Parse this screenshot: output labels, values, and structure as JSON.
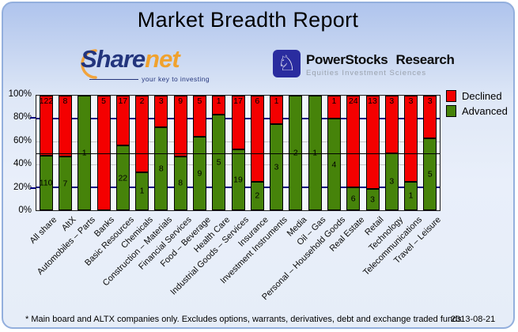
{
  "header": {
    "title": "Market Breadth Report"
  },
  "logos": {
    "sharenet": {
      "name_part1": "Share",
      "name_part2": "net",
      "tagline": "your key to investing",
      "navy": "#23357d",
      "orange": "#f0a22e"
    },
    "powerstocks": {
      "word1": "PowerStocks",
      "word2": "Research",
      "subtitle": "Equities Investment Sciences",
      "knight_icon": "chess-knight",
      "badge_color": "#2a2c9f"
    }
  },
  "chart_data": {
    "type": "bar",
    "stacked": true,
    "stacking": "percent",
    "title": "Market Breadth Report",
    "categories": [
      "All share",
      "AltX",
      "Automobiles – Parts",
      "Banks",
      "Basic Resources",
      "Chemicals",
      "Construction – Materials",
      "Financial Services",
      "Food – Beverage",
      "Health Care",
      "Industrial Goods – Services",
      "Insurance",
      "Investment Instruments",
      "Media",
      "Oil – Gas",
      "Personal – Household Goods",
      "Real Estate",
      "Retail",
      "Technology",
      "Telecommunications",
      "Travel – Leisure"
    ],
    "series": [
      {
        "name": "Declined",
        "color": "#f40000",
        "values": [
          122,
          8,
          0,
          5,
          17,
          2,
          3,
          9,
          5,
          1,
          17,
          6,
          1,
          0,
          0,
          1,
          24,
          13,
          3,
          3,
          3
        ]
      },
      {
        "name": "Advanced",
        "color": "#46830a",
        "values": [
          110,
          7,
          1,
          0,
          22,
          1,
          8,
          8,
          9,
          5,
          19,
          2,
          3,
          2,
          1,
          4,
          6,
          3,
          3,
          1,
          5
        ]
      }
    ],
    "xlabel": "",
    "ylabel": "",
    "ylim": [
      0,
      100
    ],
    "y_ticks": [
      "0%",
      "20%",
      "40%",
      "60%",
      "80%",
      "100%"
    ],
    "grid": "on",
    "reference_line_pct": 50,
    "legend_position": "top-right"
  },
  "footer": {
    "note": "* Main board and ALTX companies only. Excludes options, warrants, derivatives, debt and exchange traded funds",
    "date": "2013-08-21"
  }
}
